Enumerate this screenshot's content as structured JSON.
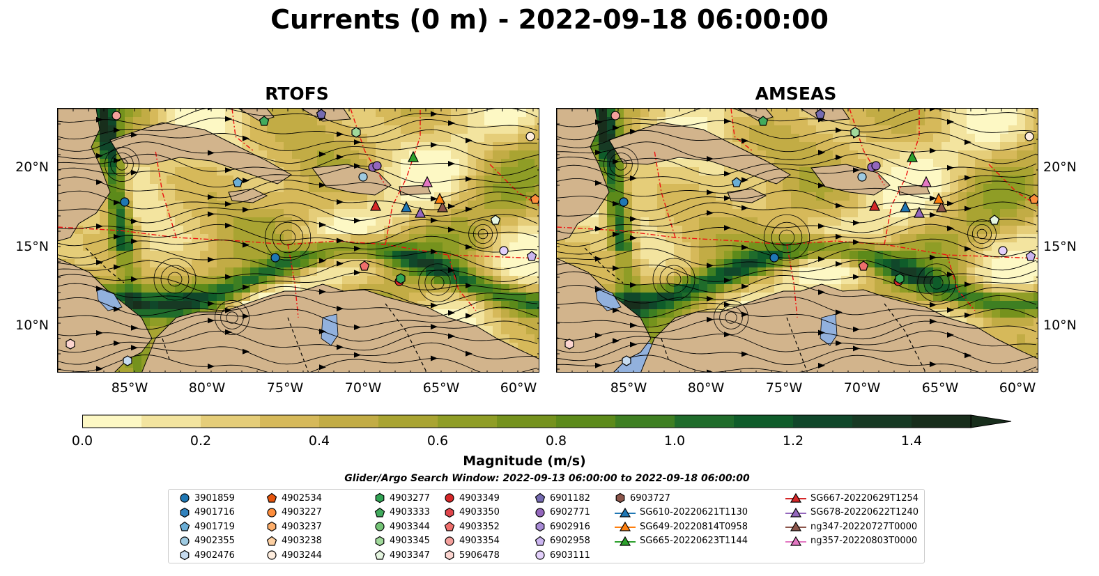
{
  "title": "Currents (0 m) - 2022-09-18 06:00:00",
  "panels": [
    {
      "title": "RTOFS"
    },
    {
      "title": "AMSEAS"
    }
  ],
  "lat_labels": [
    "20°N",
    "15°N",
    "10°N"
  ],
  "lon_labels": [
    "85°W",
    "80°W",
    "75°W",
    "70°W",
    "65°W",
    "60°W"
  ],
  "map_extent": {
    "lon": [
      -89,
      -58
    ],
    "lat": [
      7,
      24
    ]
  },
  "colorbar": {
    "label": "Magnitude (m/s)",
    "ticks": [
      "0.0",
      "0.2",
      "0.4",
      "0.6",
      "0.8",
      "1.0",
      "1.2",
      "1.4"
    ],
    "range": [
      0.0,
      1.5
    ],
    "extend": "max",
    "colors": [
      "#fdf8c4",
      "#f3e49f",
      "#e5cd79",
      "#d6b95a",
      "#c2ac45",
      "#a9a432",
      "#8f9d26",
      "#75921d",
      "#5c8a1a",
      "#3e7f22",
      "#1f6c2b",
      "#0f5c2a",
      "#10472a",
      "#173a24",
      "#182e1c"
    ]
  },
  "search_window": "Glider/Argo Search Window: 2022-09-13 06:00:00 to 2022-09-18 06:00:00",
  "legend": [
    {
      "label": "3901859",
      "marker": "circle",
      "color": "#1f77b4"
    },
    {
      "label": "4901716",
      "marker": "hexagon",
      "color": "#3182bd"
    },
    {
      "label": "4901719",
      "marker": "pentagon",
      "color": "#6baed6"
    },
    {
      "label": "4902355",
      "marker": "circle",
      "color": "#9ecae1"
    },
    {
      "label": "4902476",
      "marker": "hexagon",
      "color": "#c6dbef"
    },
    {
      "label": "4902534",
      "marker": "pentagon",
      "color": "#e6550d"
    },
    {
      "label": "4903227",
      "marker": "circle",
      "color": "#fd8d3c"
    },
    {
      "label": "4903237",
      "marker": "hexagon",
      "color": "#fdae6b"
    },
    {
      "label": "4903238",
      "marker": "pentagon",
      "color": "#fdd0a2"
    },
    {
      "label": "4903244",
      "marker": "circle",
      "color": "#feedde"
    },
    {
      "label": "4903277",
      "marker": "hexagon",
      "color": "#31a354"
    },
    {
      "label": "4903333",
      "marker": "pentagon",
      "color": "#41ab5d"
    },
    {
      "label": "4903344",
      "marker": "circle",
      "color": "#74c476"
    },
    {
      "label": "4903345",
      "marker": "hexagon",
      "color": "#a1d99b"
    },
    {
      "label": "4903347",
      "marker": "pentagon",
      "color": "#e5f5e0"
    },
    {
      "label": "4903349",
      "marker": "circle",
      "color": "#d62728"
    },
    {
      "label": "4903350",
      "marker": "hexagon",
      "color": "#e0454b"
    },
    {
      "label": "4903352",
      "marker": "pentagon",
      "color": "#ef6f6c"
    },
    {
      "label": "4903354",
      "marker": "circle",
      "color": "#f4a09c"
    },
    {
      "label": "5906478",
      "marker": "hexagon",
      "color": "#fcd5d0"
    },
    {
      "label": "6901182",
      "marker": "pentagon",
      "color": "#756bb1"
    },
    {
      "label": "6902771",
      "marker": "circle",
      "color": "#9467bd"
    },
    {
      "label": "6902916",
      "marker": "hexagon",
      "color": "#a88bd6"
    },
    {
      "label": "6902958",
      "marker": "pentagon",
      "color": "#cbb5f0"
    },
    {
      "label": "6903111",
      "marker": "circle",
      "color": "#e3d0fb"
    },
    {
      "label": "6903727",
      "marker": "hexagon",
      "color": "#8c564b"
    },
    {
      "label": "SG610-20220621T1130",
      "marker": "triangle-line",
      "color": "#1f77b4"
    },
    {
      "label": "SG649-20220814T0958",
      "marker": "triangle-line",
      "color": "#ff7f0e"
    },
    {
      "label": "SG665-20220623T1144",
      "marker": "triangle-line",
      "color": "#2ca02c"
    },
    {
      "label": "SG667-20220629T1254",
      "marker": "triangle-line",
      "color": "#d62728"
    },
    {
      "label": "SG678-20220622T1240",
      "marker": "triangle-line",
      "color": "#9467bd"
    },
    {
      "label": "ng347-20220727T0000",
      "marker": "triangle-line",
      "color": "#8c564b"
    },
    {
      "label": "ng357-20220803T0000",
      "marker": "triangle-line",
      "color": "#e377c2"
    }
  ]
}
